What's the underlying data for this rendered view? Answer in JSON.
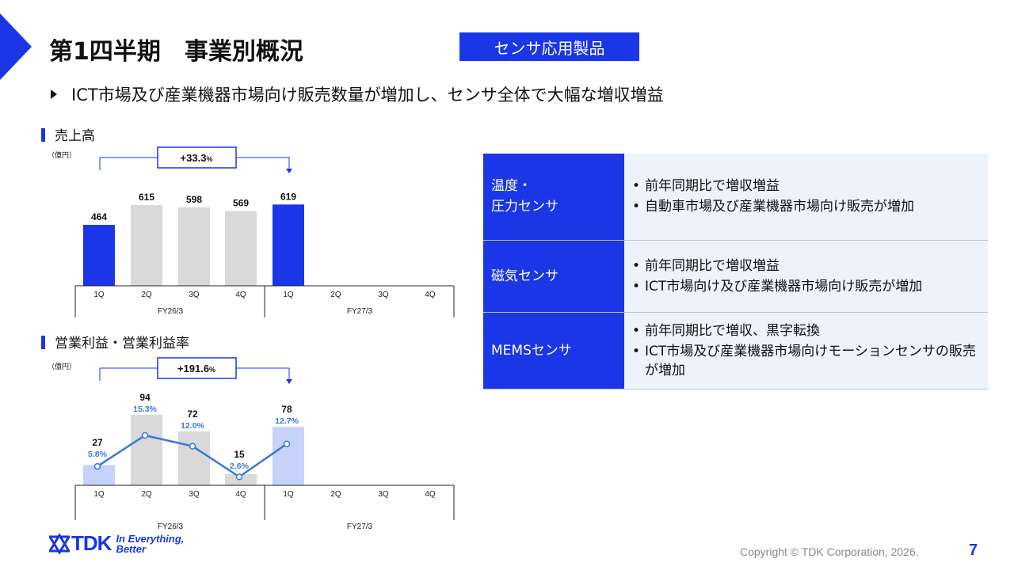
{
  "header": {
    "title": "第1四半期　事業別概況",
    "badge": "センサ応用製品",
    "headline": "ICT市場及び産業機器市場向け販売数量が増加し、センサ全体で大幅な増収増益"
  },
  "colors": {
    "accent": "#1a36e6",
    "bar_gray": "#d9d9d9",
    "bar_light": "#c7d2fb",
    "line": "#3a78d8"
  },
  "sales_section": {
    "label": "売上高",
    "unit": "（億円）",
    "growth_prefix": "+33.3",
    "growth_suffix": "%"
  },
  "profit_section": {
    "label": "営業利益・営業利益率",
    "unit": "（億円）",
    "growth_prefix": "+191.6",
    "growth_suffix": "%"
  },
  "chart_data": [
    {
      "type": "bar",
      "categories": [
        "1Q",
        "2Q",
        "3Q",
        "4Q",
        "1Q",
        "2Q",
        "3Q",
        "4Q"
      ],
      "groups": [
        "FY26/3",
        "FY27/3"
      ],
      "values": [
        464,
        615,
        598,
        569,
        619,
        null,
        null,
        null
      ],
      "highlight": [
        true,
        false,
        false,
        false,
        true,
        false,
        false,
        false
      ],
      "ylim": [
        0,
        700
      ]
    },
    {
      "type": "bar",
      "categories": [
        "1Q",
        "2Q",
        "3Q",
        "4Q",
        "1Q",
        "2Q",
        "3Q",
        "4Q"
      ],
      "groups": [
        "FY26/3",
        "FY27/3"
      ],
      "values": [
        27,
        94,
        72,
        15,
        78,
        null,
        null,
        null
      ],
      "margin_labels": [
        "5.8%",
        "15.3%",
        "12.0%",
        "2.6%",
        "12.7%",
        null,
        null,
        null
      ],
      "margin_values": [
        5.8,
        15.3,
        12.0,
        2.6,
        12.7,
        null,
        null,
        null
      ],
      "ylim": [
        0,
        100
      ]
    }
  ],
  "table": {
    "rows": [
      {
        "label_lines": [
          "温度・",
          "圧力センサ"
        ],
        "bullets": [
          "前年同期比で増収増益",
          "自動車市場及び産業機器市場向け販売が増加"
        ]
      },
      {
        "label_lines": [
          "磁気センサ"
        ],
        "bullets": [
          "前年同期比で増収増益",
          "ICT市場向け及び産業機器市場向け販売が増加"
        ]
      },
      {
        "label_lines": [
          "MEMSセンサ"
        ],
        "bullets": [
          "前年同期比で増収、黒字転換",
          "ICT市場及び産業機器市場向けモーションセンサの販売が増加"
        ]
      }
    ]
  },
  "footer": {
    "logo_text": "TDK",
    "slogan_line1": "In Everything,",
    "slogan_line2": "Better",
    "copyright": "Copyright  © TDK Corporation, 2026.",
    "page_number": "7"
  }
}
